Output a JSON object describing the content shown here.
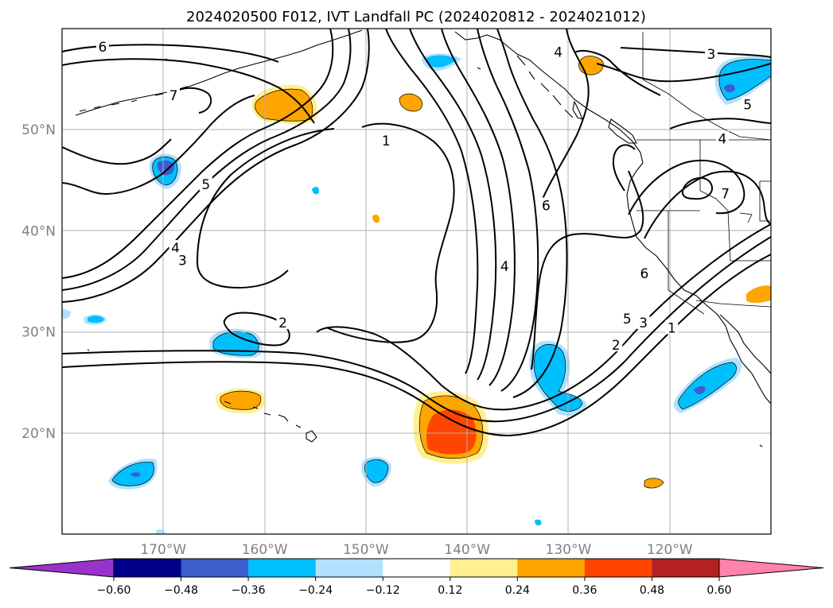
{
  "title": "2024020500 F012, IVT Landfall PC (2024020812 - 2024021012)",
  "map": {
    "lon_range": [
      -180,
      -110
    ],
    "lat_range": [
      10,
      60
    ],
    "lat_labels": [
      {
        "lat": 50,
        "text": "50°N"
      },
      {
        "lat": 40,
        "text": "40°N"
      },
      {
        "lat": 30,
        "text": "30°N"
      },
      {
        "lat": 20,
        "text": "20°N"
      }
    ],
    "lon_labels": [
      {
        "lon": -170,
        "text": "170°W"
      },
      {
        "lon": -160,
        "text": "160°W"
      },
      {
        "lon": -150,
        "text": "150°W"
      },
      {
        "lon": -140,
        "text": "140°W"
      },
      {
        "lon": -130,
        "text": "130°W"
      },
      {
        "lon": -120,
        "text": "120°W"
      }
    ],
    "grid": true
  },
  "colorbar": {
    "colors": [
      "#9932cc",
      "#00008b",
      "#3a5fcd",
      "#00bfff",
      "#b0e2ff",
      "#ffffff",
      "#fff08f",
      "#ffa500",
      "#ff4500",
      "#b22222",
      "#ff82ab"
    ],
    "ticks": [
      "−0.60",
      "−0.48",
      "−0.36",
      "−0.24",
      "−0.12",
      "0.12",
      "0.24",
      "0.36",
      "0.48",
      "0.60"
    ],
    "extend": "both"
  },
  "contour_labels": [
    {
      "text": "6",
      "lon": -176,
      "lat": 58.2
    },
    {
      "text": "7",
      "lon": -169,
      "lat": 53.4
    },
    {
      "text": "1",
      "lon": -148,
      "lat": 48.9
    },
    {
      "text": "5",
      "lon": -165.8,
      "lat": 44.6
    },
    {
      "text": "4",
      "lon": -168.8,
      "lat": 38.3
    },
    {
      "text": "3",
      "lon": -168.1,
      "lat": 37.1
    },
    {
      "text": "2",
      "lon": -158.2,
      "lat": 30.9
    },
    {
      "text": "4",
      "lon": -136.3,
      "lat": 36.5
    },
    {
      "text": "6",
      "lon": -132.2,
      "lat": 42.5
    },
    {
      "text": "4",
      "lon": -131.0,
      "lat": 57.7
    },
    {
      "text": "3",
      "lon": -115.9,
      "lat": 57.5
    },
    {
      "text": "5",
      "lon": -112.3,
      "lat": 52.5
    },
    {
      "text": "4",
      "lon": -114.8,
      "lat": 49.1
    },
    {
      "text": "7",
      "lon": -114.5,
      "lat": 43.7
    },
    {
      "text": "6",
      "lon": -122.5,
      "lat": 35.8
    },
    {
      "text": "5",
      "lon": -124.2,
      "lat": 31.3
    },
    {
      "text": "3",
      "lon": -122.6,
      "lat": 30.9
    },
    {
      "text": "2",
      "lon": -125.3,
      "lat": 28.7
    },
    {
      "text": "1",
      "lon": -119.8,
      "lat": 30.4
    }
  ]
}
